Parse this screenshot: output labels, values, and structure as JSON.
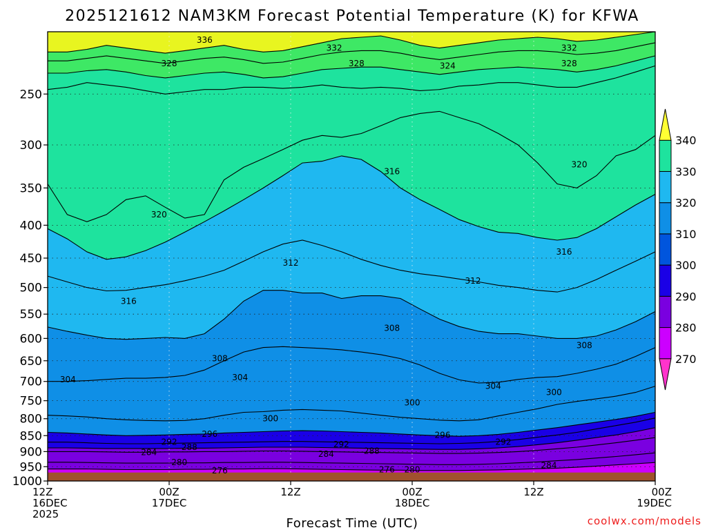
{
  "title": "2025121612 NAM3KM Forecast Potential Temperature (K) for KFWA",
  "credit": "coolwx.com/models",
  "chart_data": {
    "type": "contour",
    "title": "2025121612 NAM3KM Forecast Potential Temperature (K) for KFWA",
    "xlabel": "Forecast Time (UTC)",
    "ylabel": "",
    "x_ticks": [
      {
        "hour": 0,
        "line1": "12Z",
        "line2": "16DEC",
        "line3": "2025"
      },
      {
        "hour": 12,
        "line1": "00Z",
        "line2": "17DEC",
        "line3": ""
      },
      {
        "hour": 24,
        "line1": "12Z",
        "line2": "",
        "line3": ""
      },
      {
        "hour": 36,
        "line1": "00Z",
        "line2": "18DEC",
        "line3": ""
      },
      {
        "hour": 48,
        "line1": "12Z",
        "line2": "",
        "line3": ""
      },
      {
        "hour": 60,
        "line1": "00Z",
        "line2": "19DEC",
        "line3": ""
      }
    ],
    "xlim": [
      0,
      60
    ],
    "y_ticks": [
      250,
      300,
      350,
      400,
      450,
      500,
      550,
      600,
      650,
      700,
      750,
      800,
      850,
      900,
      950,
      1000
    ],
    "ylim_hpa": [
      200,
      1000
    ],
    "yscale": "log",
    "yreversed": true,
    "grid": true,
    "surface_pressure_hpa": 970,
    "surface_color": "#a0522d",
    "colorbar": {
      "levels": [
        270,
        280,
        290,
        300,
        310,
        320,
        330,
        340
      ],
      "colors": [
        "#ff33cc",
        "#cc00ff",
        "#7a00e0",
        "#1a00e6",
        "#0055dd",
        "#0f8fe6",
        "#1fb8f0",
        "#1ee39e",
        "#66ee00",
        "#ffff33"
      ]
    },
    "isentropes": [
      {
        "theta": 336,
        "p": [
          215,
          215,
          213,
          210,
          212,
          214,
          216,
          214,
          212,
          210,
          213,
          215,
          214,
          211,
          208,
          205,
          204,
          203,
          206,
          210,
          212,
          210,
          208,
          206,
          205,
          204,
          205,
          207,
          206,
          204,
          202,
          200
        ]
      },
      {
        "theta": 332,
        "p": [
          222,
          222,
          220,
          218,
          220,
          222,
          224,
          222,
          220,
          219,
          221,
          224,
          223,
          220,
          217,
          215,
          214,
          214,
          216,
          219,
          221,
          219,
          217,
          215,
          214,
          214,
          215,
          217,
          216,
          214,
          211,
          208
        ]
      },
      {
        "theta": 328,
        "p": [
          232,
          232,
          230,
          229,
          231,
          234,
          236,
          234,
          232,
          231,
          233,
          236,
          235,
          232,
          229,
          228,
          227,
          227,
          229,
          231,
          233,
          231,
          229,
          228,
          227,
          228,
          229,
          231,
          229,
          226,
          222,
          218
        ]
      },
      {
        "theta": 324,
        "p": [
          246,
          244,
          240,
          242,
          244,
          247,
          250,
          248,
          246,
          246,
          244,
          244,
          245,
          244,
          242,
          244,
          245,
          244,
          245,
          247,
          246,
          243,
          242,
          240,
          240,
          242,
          244,
          244,
          240,
          236,
          231,
          226
        ]
      },
      {
        "theta": 320,
        "p": [
          345,
          385,
          395,
          385,
          365,
          360,
          375,
          390,
          385,
          340,
          325,
          315,
          305,
          295,
          290,
          292,
          288,
          280,
          272,
          268,
          266,
          272,
          278,
          288,
          300,
          320,
          345,
          350,
          335,
          312,
          305,
          290
        ]
      },
      {
        "theta": 316,
        "p": [
          405,
          420,
          440,
          452,
          448,
          438,
          425,
          410,
          395,
          380,
          365,
          350,
          335,
          320,
          318,
          312,
          316,
          330,
          350,
          365,
          378,
          392,
          402,
          410,
          412,
          418,
          422,
          418,
          405,
          388,
          372,
          358
        ]
      },
      {
        "theta": 312,
        "p": [
          480,
          490,
          500,
          506,
          505,
          500,
          495,
          488,
          480,
          470,
          455,
          440,
          428,
          422,
          430,
          440,
          452,
          462,
          470,
          476,
          480,
          485,
          490,
          496,
          500,
          505,
          508,
          500,
          486,
          470,
          455,
          440
        ]
      },
      {
        "theta": 308,
        "p": [
          576,
          585,
          593,
          600,
          602,
          600,
          598,
          600,
          590,
          560,
          525,
          505,
          505,
          510,
          510,
          520,
          515,
          515,
          520,
          540,
          560,
          575,
          585,
          590,
          590,
          595,
          600,
          600,
          595,
          582,
          565,
          545
        ]
      },
      {
        "theta": 304,
        "p": [
          700,
          700,
          698,
          695,
          692,
          692,
          690,
          685,
          672,
          650,
          630,
          620,
          618,
          620,
          622,
          625,
          630,
          636,
          645,
          660,
          680,
          696,
          704,
          702,
          695,
          690,
          688,
          680,
          670,
          658,
          640,
          620
        ]
      },
      {
        "theta": 300,
        "p": [
          790,
          792,
          795,
          800,
          803,
          805,
          806,
          805,
          800,
          790,
          782,
          780,
          776,
          774,
          776,
          778,
          784,
          790,
          796,
          800,
          804,
          806,
          803,
          792,
          782,
          772,
          760,
          752,
          745,
          738,
          728,
          712
        ]
      },
      {
        "theta": 296,
        "p": [
          840,
          842,
          845,
          848,
          850,
          849,
          848,
          846,
          845,
          842,
          840,
          838,
          836,
          835,
          836,
          838,
          840,
          842,
          845,
          848,
          850,
          852,
          850,
          846,
          840,
          833,
          826,
          818,
          810,
          802,
          793,
          782
        ]
      },
      {
        "theta": 292,
        "p": [
          870,
          870,
          872,
          874,
          875,
          875,
          874,
          873,
          872,
          871,
          870,
          869,
          868,
          868,
          869,
          870,
          871,
          872,
          873,
          874,
          875,
          874,
          872,
          868,
          862,
          855,
          848,
          840,
          830,
          820,
          810,
          798
        ]
      },
      {
        "theta": 288,
        "p": [
          888,
          888,
          889,
          890,
          890,
          890,
          890,
          889,
          889,
          888,
          887,
          886,
          886,
          886,
          887,
          888,
          889,
          890,
          891,
          892,
          893,
          893,
          891,
          888,
          884,
          878,
          872,
          864,
          856,
          848,
          838,
          826
        ]
      },
      {
        "theta": 284,
        "p": [
          900,
          900,
          900,
          901,
          902,
          902,
          901,
          901,
          900,
          900,
          899,
          898,
          898,
          899,
          900,
          901,
          902,
          903,
          904,
          905,
          906,
          906,
          905,
          903,
          900,
          896,
          891,
          886,
          879,
          872,
          864,
          856
        ]
      },
      {
        "theta": 280,
        "p": [
          935,
          935,
          936,
          937,
          938,
          938,
          938,
          937,
          937,
          936,
          936,
          935,
          935,
          936,
          937,
          938,
          939,
          940,
          941,
          942,
          943,
          943,
          942,
          940,
          937,
          934,
          930,
          926,
          921,
          916,
          910,
          904
        ]
      },
      {
        "theta": 276,
        "p": [
          958,
          958,
          958,
          959,
          960,
          960,
          960,
          959,
          959,
          958,
          958,
          957,
          957,
          958,
          959,
          960,
          961,
          962,
          962,
          963,
          963,
          963,
          962,
          961,
          959,
          957,
          955,
          952,
          948,
          944,
          940,
          936
        ]
      }
    ],
    "contour_labels": [
      {
        "text": "336",
        "hour": 15.5,
        "p": 206
      },
      {
        "text": "332",
        "hour": 28.3,
        "p": 212
      },
      {
        "text": "332",
        "hour": 51.5,
        "p": 212
      },
      {
        "text": "328",
        "hour": 12.0,
        "p": 224
      },
      {
        "text": "328",
        "hour": 30.5,
        "p": 224
      },
      {
        "text": "328",
        "hour": 51.5,
        "p": 224
      },
      {
        "text": "324",
        "hour": 39.5,
        "p": 226
      },
      {
        "text": "320",
        "hour": 11.0,
        "p": 385
      },
      {
        "text": "320",
        "hour": 52.5,
        "p": 322
      },
      {
        "text": "316",
        "hour": 34.0,
        "p": 330
      },
      {
        "text": "316",
        "hour": 51.0,
        "p": 440
      },
      {
        "text": "316",
        "hour": 8.0,
        "p": 525
      },
      {
        "text": "312",
        "hour": 24.0,
        "p": 458
      },
      {
        "text": "312",
        "hour": 42.0,
        "p": 488
      },
      {
        "text": "308",
        "hour": 17.0,
        "p": 645
      },
      {
        "text": "308",
        "hour": 34.0,
        "p": 578
      },
      {
        "text": "308",
        "hour": 53.0,
        "p": 615
      },
      {
        "text": "304",
        "hour": 2.0,
        "p": 695
      },
      {
        "text": "304",
        "hour": 19.0,
        "p": 690
      },
      {
        "text": "304",
        "hour": 44.0,
        "p": 712
      },
      {
        "text": "300",
        "hour": 22.0,
        "p": 800
      },
      {
        "text": "300",
        "hour": 36.0,
        "p": 755
      },
      {
        "text": "300",
        "hour": 50.0,
        "p": 728
      },
      {
        "text": "296",
        "hour": 16.0,
        "p": 845
      },
      {
        "text": "296",
        "hour": 39.0,
        "p": 848
      },
      {
        "text": "292",
        "hour": 12.0,
        "p": 870
      },
      {
        "text": "292",
        "hour": 29.0,
        "p": 877
      },
      {
        "text": "292",
        "hour": 45.0,
        "p": 870
      },
      {
        "text": "288",
        "hour": 14.0,
        "p": 886
      },
      {
        "text": "288",
        "hour": 32.0,
        "p": 898
      },
      {
        "text": "284",
        "hour": 10.0,
        "p": 902
      },
      {
        "text": "284",
        "hour": 27.5,
        "p": 908
      },
      {
        "text": "284",
        "hour": 49.5,
        "p": 946
      },
      {
        "text": "280",
        "hour": 13.0,
        "p": 936
      },
      {
        "text": "280",
        "hour": 36.0,
        "p": 960
      },
      {
        "text": "276",
        "hour": 17.0,
        "p": 963
      },
      {
        "text": "276",
        "hour": 33.5,
        "p": 960
      }
    ]
  }
}
